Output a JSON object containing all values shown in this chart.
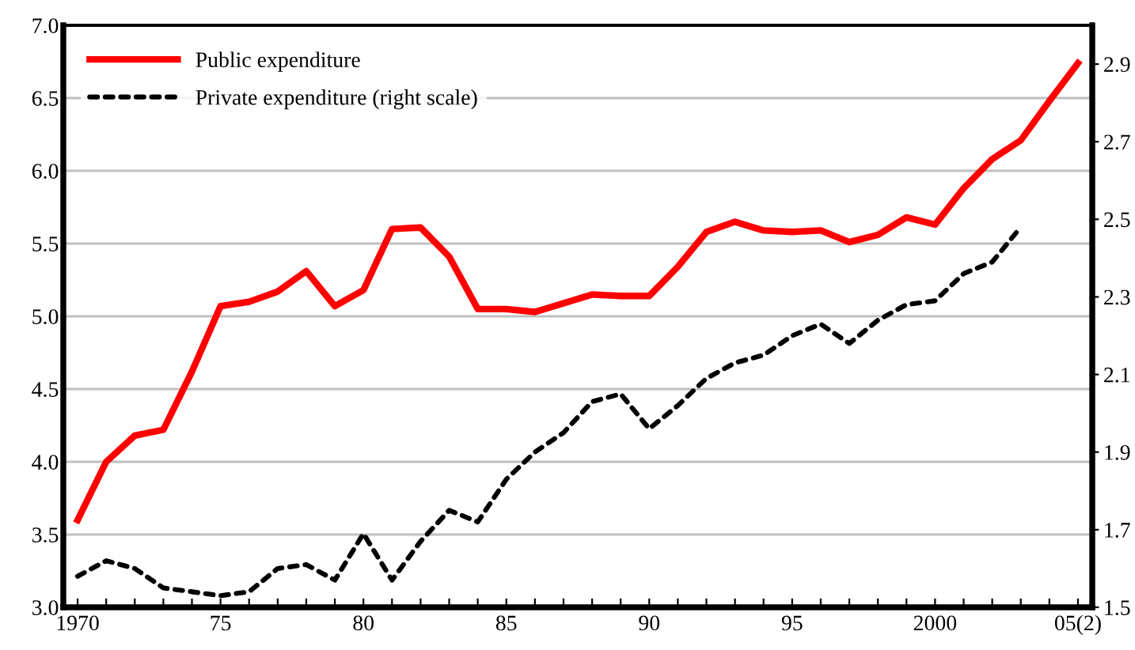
{
  "chart_data": {
    "type": "line",
    "categories": [
      "1970",
      null,
      null,
      null,
      null,
      "75",
      null,
      null,
      null,
      null,
      "80",
      null,
      null,
      null,
      null,
      "85",
      null,
      null,
      null,
      null,
      "90",
      null,
      null,
      null,
      null,
      "95",
      null,
      null,
      null,
      null,
      "2000",
      null,
      null,
      null,
      null,
      "05(2)"
    ],
    "series": [
      {
        "name": "Public expenditure",
        "color": "#ff0000",
        "line_style": "solid",
        "values": [
          3.6,
          4.0,
          4.18,
          4.22,
          4.62,
          5.07,
          5.1,
          5.17,
          5.31,
          5.07,
          5.18,
          5.6,
          5.61,
          5.41,
          5.05,
          5.05,
          5.03,
          5.09,
          5.15,
          5.14,
          5.14,
          5.34,
          5.58,
          5.65,
          5.59,
          5.58,
          5.59,
          5.51,
          5.56,
          5.68,
          5.63,
          5.88,
          6.08,
          6.21,
          6.48,
          6.74
        ]
      },
      {
        "name": "Private expenditure (right scale)",
        "color": "#000000",
        "line_style": "dashed",
        "axis": "y2",
        "values": [
          1.58,
          1.62,
          1.6,
          1.55,
          1.54,
          1.53,
          1.54,
          1.6,
          1.61,
          1.57,
          1.69,
          1.57,
          1.67,
          1.75,
          1.72,
          1.83,
          1.9,
          1.95,
          2.03,
          2.05,
          1.96,
          2.02,
          2.09,
          2.13,
          2.15,
          2.2,
          2.23,
          2.18,
          2.24,
          2.28,
          2.29,
          2.36,
          2.39,
          2.48,
          null,
          null
        ]
      }
    ],
    "ylim": [
      3,
      7
    ],
    "yticks": [
      {
        "value": 3,
        "label": "3.0"
      },
      3.5,
      {
        "value": 4,
        "label": "4.0"
      },
      4.5,
      {
        "value": 5,
        "label": "5.0"
      },
      5.5,
      {
        "value": 6,
        "label": "6.0"
      },
      6.5,
      {
        "value": 7,
        "label": "7.0"
      }
    ],
    "y2lim": [
      1.5,
      3
    ],
    "y2ticks": [
      1.5,
      1.7,
      1.9,
      2.1,
      2.3,
      2.5,
      2.7,
      2.9
    ],
    "grid": "y",
    "legend": "top left",
    "marker": "none"
  }
}
